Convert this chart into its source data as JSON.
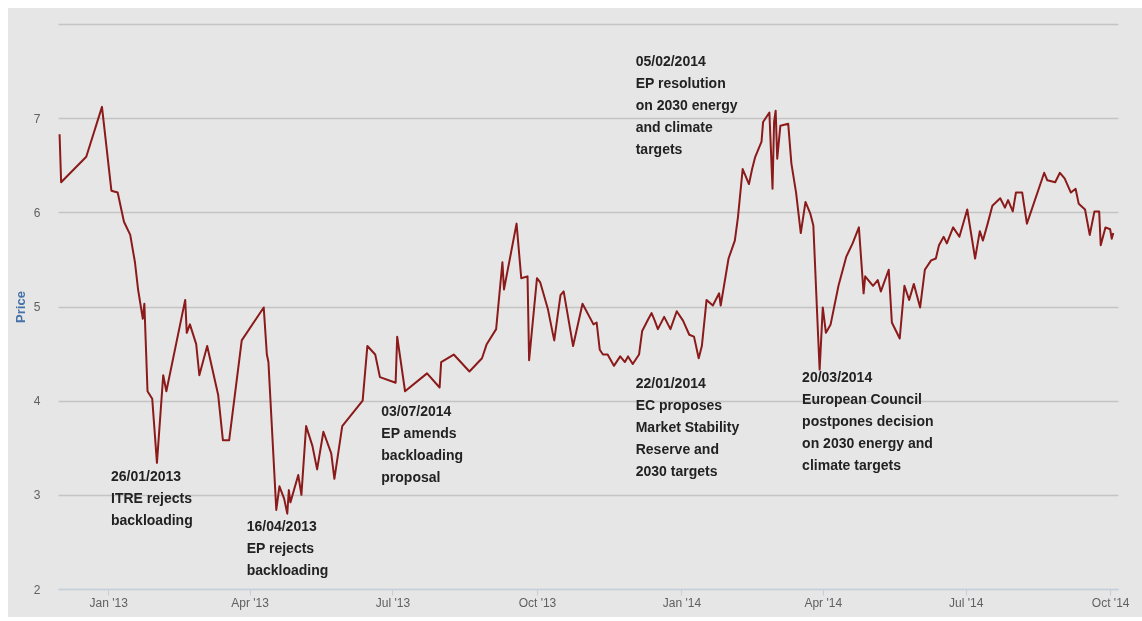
{
  "chart_data": {
    "type": "line",
    "ylabel": "Price",
    "xlim": [
      "2012-11-30",
      "2014-10-06"
    ],
    "ylim": [
      2,
      8
    ],
    "xticks": [
      {
        "value": "2013-01-01",
        "label": "Jan '13"
      },
      {
        "value": "2013-04-01",
        "label": "Apr '13"
      },
      {
        "value": "2013-07-01",
        "label": "Jul '13"
      },
      {
        "value": "2013-10-01",
        "label": "Oct '13"
      },
      {
        "value": "2014-01-01",
        "label": "Jan '14"
      },
      {
        "value": "2014-04-01",
        "label": "Apr '14"
      },
      {
        "value": "2014-07-01",
        "label": "Jul '14"
      },
      {
        "value": "2014-10-01",
        "label": "Oct '14"
      }
    ],
    "yticks": [
      2,
      3,
      4,
      5,
      6,
      7,
      {
        "value": 8,
        "label": null
      }
    ],
    "grid": "y",
    "x": [
      "2012-12-01",
      "2012-12-02",
      "2012-12-18",
      "2012-12-28",
      "2013-01-03",
      "2013-01-07",
      "2013-01-11",
      "2013-01-15",
      "2013-01-18",
      "2013-01-20",
      "2013-01-23",
      "2013-01-24",
      "2013-01-26",
      "2013-01-29",
      "2013-02-01",
      "2013-02-05",
      "2013-02-07",
      "2013-02-19",
      "2013-02-20",
      "2013-02-22",
      "2013-02-26",
      "2013-02-28",
      "2013-03-05",
      "2013-03-12",
      "2013-03-15",
      "2013-03-19",
      "2013-03-27",
      "2013-04-10",
      "2013-04-12",
      "2013-04-13",
      "2013-04-18",
      "2013-04-20",
      "2013-04-23",
      "2013-04-25",
      "2013-04-26",
      "2013-04-27",
      "2013-05-02",
      "2013-05-04",
      "2013-05-07",
      "2013-05-11",
      "2013-05-14",
      "2013-05-18",
      "2013-05-23",
      "2013-05-25",
      "2013-05-30",
      "2013-06-12",
      "2013-06-15",
      "2013-06-20",
      "2013-06-23",
      "2013-07-03",
      "2013-07-04",
      "2013-07-09",
      "2013-07-23",
      "2013-07-31",
      "2013-08-01",
      "2013-08-09",
      "2013-08-19",
      "2013-08-27",
      "2013-08-30",
      "2013-09-05",
      "2013-09-09",
      "2013-09-10",
      "2013-09-18",
      "2013-09-21",
      "2013-09-25",
      "2013-09-26",
      "2013-10-01",
      "2013-10-03",
      "2013-10-08",
      "2013-10-11",
      "2013-10-12",
      "2013-10-16",
      "2013-10-18",
      "2013-10-24",
      "2013-10-30",
      "2013-11-06",
      "2013-11-08",
      "2013-11-10",
      "2013-11-12",
      "2013-11-15",
      "2013-11-19",
      "2013-11-23",
      "2013-11-26",
      "2013-11-28",
      "2013-12-01",
      "2013-12-05",
      "2013-12-07",
      "2013-12-11",
      "2013-12-13",
      "2013-12-15",
      "2013-12-17",
      "2013-12-21",
      "2013-12-25",
      "2013-12-29",
      "2014-01-02",
      "2014-01-06",
      "2014-01-09",
      "2014-01-12",
      "2014-01-14",
      "2014-01-17",
      "2014-01-21",
      "2014-01-25",
      "2014-01-26",
      "2014-01-31",
      "2014-02-04",
      "2014-02-06",
      "2014-02-09",
      "2014-02-13",
      "2014-02-15",
      "2014-02-17",
      "2014-02-21",
      "2014-02-22",
      "2014-02-26",
      "2014-02-28",
      "2014-03-01",
      "2014-03-02",
      "2014-03-03",
      "2014-03-05",
      "2014-03-10",
      "2014-03-12",
      "2014-03-15",
      "2014-03-18",
      "2014-03-21",
      "2014-03-24",
      "2014-03-26",
      "2014-03-29",
      "2014-03-30",
      "2014-04-01",
      "2014-04-03",
      "2014-04-06",
      "2014-04-11",
      "2014-04-16",
      "2014-04-20",
      "2014-04-24",
      "2014-04-27",
      "2014-04-28",
      "2014-05-03",
      "2014-05-06",
      "2014-05-08",
      "2014-05-13",
      "2014-05-15",
      "2014-05-20",
      "2014-05-23",
      "2014-05-26",
      "2014-05-29",
      "2014-06-02",
      "2014-06-05",
      "2014-06-09",
      "2014-06-12",
      "2014-06-14",
      "2014-06-17",
      "2014-06-19",
      "2014-06-23",
      "2014-06-27",
      "2014-07-02",
      "2014-07-07",
      "2014-07-10",
      "2014-07-12",
      "2014-07-15",
      "2014-07-18",
      "2014-07-23",
      "2014-07-26",
      "2014-07-28",
      "2014-07-31",
      "2014-08-02",
      "2014-08-06",
      "2014-08-09",
      "2014-08-20",
      "2014-08-22",
      "2014-08-27",
      "2014-08-30",
      "2014-09-02",
      "2014-09-06",
      "2014-09-09",
      "2014-09-11",
      "2014-09-15",
      "2014-09-18",
      "2014-09-21",
      "2014-09-24",
      "2014-09-25",
      "2014-09-28",
      "2014-10-01",
      "2014-10-02",
      "2014-10-03"
    ],
    "series": [
      {
        "color": "#8b1a1a",
        "values": [
          6.83,
          6.32,
          6.59,
          7.12,
          6.23,
          6.21,
          5.9,
          5.76,
          5.47,
          5.18,
          4.87,
          5.03,
          4.1,
          4.02,
          3.34,
          4.27,
          4.1,
          5.07,
          4.72,
          4.81,
          4.6,
          4.27,
          4.58,
          4.06,
          3.58,
          3.58,
          4.64,
          4.99,
          4.49,
          4.41,
          2.84,
          3.09,
          2.96,
          2.8,
          3.05,
          2.92,
          3.21,
          3.0,
          3.73,
          3.52,
          3.27,
          3.67,
          3.44,
          3.17,
          3.73,
          4.0,
          4.58,
          4.49,
          4.25,
          4.19,
          4.68,
          4.1,
          4.29,
          4.14,
          4.41,
          4.49,
          4.31,
          4.45,
          4.6,
          4.76,
          5.47,
          5.18,
          5.88,
          5.3,
          5.32,
          4.43,
          5.3,
          5.26,
          4.97,
          4.72,
          4.64,
          5.12,
          5.16,
          4.58,
          5.03,
          4.81,
          4.83,
          4.54,
          4.49,
          4.49,
          4.37,
          4.47,
          4.41,
          4.47,
          4.39,
          4.49,
          4.74,
          4.87,
          4.93,
          4.85,
          4.76,
          4.89,
          4.76,
          4.95,
          4.85,
          4.7,
          4.68,
          4.45,
          4.58,
          5.07,
          5.01,
          5.14,
          5.01,
          5.51,
          5.7,
          5.95,
          6.46,
          6.3,
          6.46,
          6.59,
          6.75,
          6.96,
          7.06,
          6.25,
          6.96,
          7.08,
          6.57,
          6.92,
          6.94,
          6.52,
          6.21,
          5.78,
          6.11,
          5.99,
          5.86,
          4.7,
          4.33,
          4.99,
          4.72,
          4.81,
          5.22,
          5.53,
          5.67,
          5.84,
          5.14,
          5.32,
          5.22,
          5.28,
          5.16,
          5.39,
          4.83,
          4.66,
          5.22,
          5.07,
          5.24,
          4.99,
          5.39,
          5.49,
          5.51,
          5.65,
          5.74,
          5.67,
          5.84,
          5.74,
          6.03,
          5.51,
          5.8,
          5.7,
          5.88,
          6.07,
          6.15,
          6.05,
          6.13,
          6.01,
          6.21,
          6.21,
          5.88,
          6.42,
          6.34,
          6.32,
          6.42,
          6.36,
          6.21,
          6.25,
          6.09,
          6.03,
          5.76,
          6.01,
          6.01,
          5.65,
          5.84,
          5.82,
          5.72,
          5.78
        ]
      }
    ],
    "annotations": [
      "26/01/2013\nITRE rejects\nbackloading",
      "16/04/2013\nEP rejects\nbackloading",
      "03/07/2014\nEP amends\nbackloading\nproposal",
      "22/01/2014\nEC proposes\nMarket Stability\nReserve and\n2030 targets",
      "05/02/2014\nEP resolution\non 2030 energy\nand climate\ntargets",
      "20/03/2014\nEuropean Council\npostpones decision\non 2030 energy and\nclimate targets"
    ]
  }
}
